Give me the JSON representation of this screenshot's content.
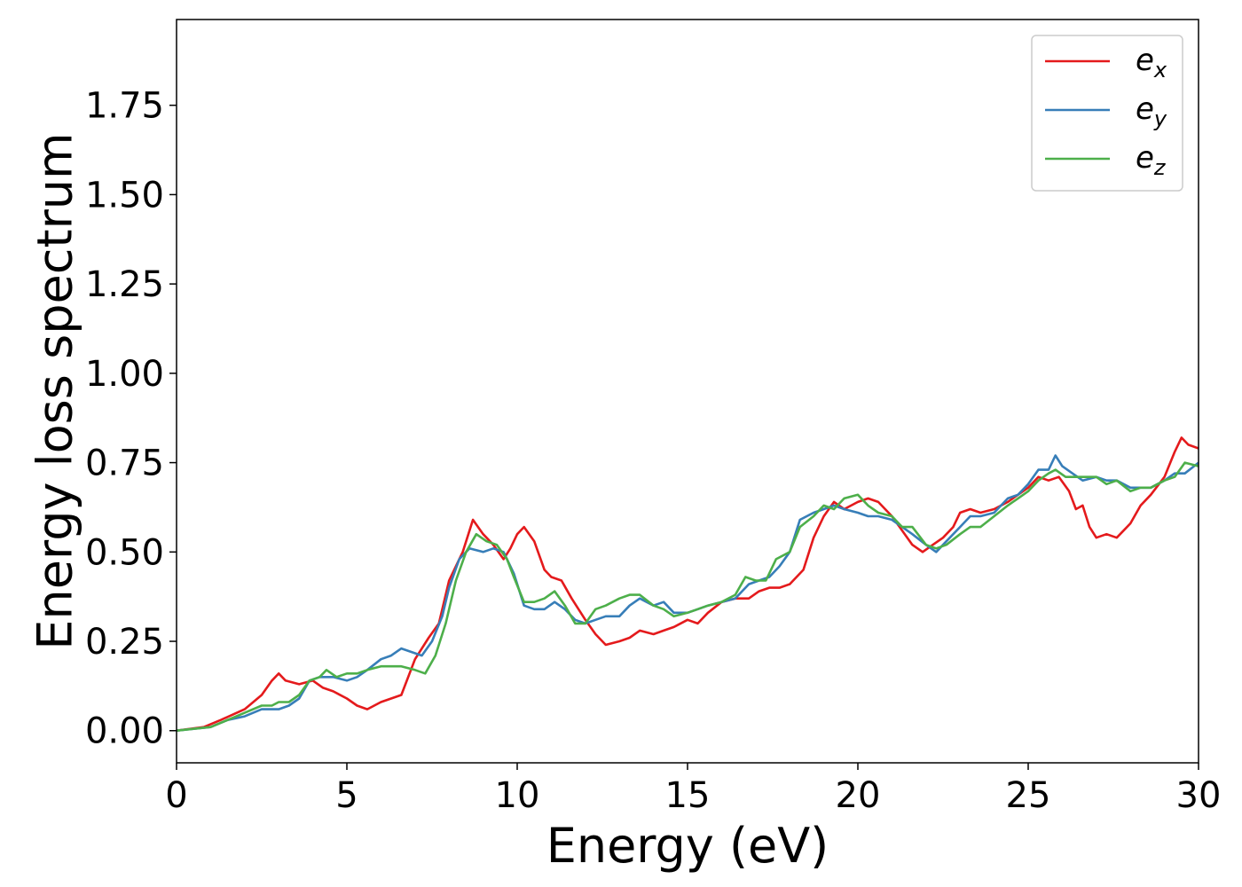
{
  "chart_data": {
    "type": "line",
    "title": "",
    "xlabel": "Energy (eV)",
    "ylabel": "Energy loss spectrum",
    "xlim": [
      0,
      30
    ],
    "ylim": [
      -0.09,
      1.99
    ],
    "xticks": [
      0,
      5,
      10,
      15,
      20,
      25,
      30
    ],
    "xtick_labels": [
      "0",
      "5",
      "10",
      "15",
      "20",
      "25",
      "30"
    ],
    "yticks": [
      0.0,
      0.25,
      0.5,
      0.75,
      1.0,
      1.25,
      1.5,
      1.75
    ],
    "ytick_labels": [
      "0.00",
      "0.25",
      "0.50",
      "0.75",
      "1.00",
      "1.25",
      "1.50",
      "1.75"
    ],
    "grid": false,
    "legend_position": "top-right",
    "series": [
      {
        "name": "e",
        "name_sub": "x",
        "color": "#e41a1c",
        "points": [
          [
            0,
            0
          ],
          [
            0.8,
            0.01
          ],
          [
            1.3,
            0.03
          ],
          [
            2,
            0.06
          ],
          [
            2.5,
            0.1
          ],
          [
            2.8,
            0.14
          ],
          [
            3,
            0.16
          ],
          [
            3.2,
            0.14
          ],
          [
            3.6,
            0.13
          ],
          [
            4,
            0.14
          ],
          [
            4.3,
            0.12
          ],
          [
            4.6,
            0.11
          ],
          [
            5,
            0.09
          ],
          [
            5.3,
            0.07
          ],
          [
            5.6,
            0.06
          ],
          [
            6,
            0.08
          ],
          [
            6.3,
            0.09
          ],
          [
            6.6,
            0.1
          ],
          [
            7,
            0.2
          ],
          [
            7.4,
            0.26
          ],
          [
            7.7,
            0.3
          ],
          [
            8,
            0.42
          ],
          [
            8.4,
            0.5
          ],
          [
            8.7,
            0.59
          ],
          [
            9,
            0.55
          ],
          [
            9.3,
            0.52
          ],
          [
            9.6,
            0.48
          ],
          [
            9.8,
            0.51
          ],
          [
            10,
            0.55
          ],
          [
            10.2,
            0.57
          ],
          [
            10.5,
            0.53
          ],
          [
            10.8,
            0.45
          ],
          [
            11,
            0.43
          ],
          [
            11.3,
            0.42
          ],
          [
            11.6,
            0.37
          ],
          [
            12,
            0.31
          ],
          [
            12.3,
            0.27
          ],
          [
            12.6,
            0.24
          ],
          [
            13,
            0.25
          ],
          [
            13.3,
            0.26
          ],
          [
            13.6,
            0.28
          ],
          [
            14,
            0.27
          ],
          [
            14.3,
            0.28
          ],
          [
            14.6,
            0.29
          ],
          [
            15,
            0.31
          ],
          [
            15.3,
            0.3
          ],
          [
            15.6,
            0.33
          ],
          [
            16,
            0.36
          ],
          [
            16.4,
            0.37
          ],
          [
            16.8,
            0.37
          ],
          [
            17.1,
            0.39
          ],
          [
            17.4,
            0.4
          ],
          [
            17.7,
            0.4
          ],
          [
            18,
            0.41
          ],
          [
            18.4,
            0.45
          ],
          [
            18.7,
            0.54
          ],
          [
            19,
            0.6
          ],
          [
            19.3,
            0.64
          ],
          [
            19.6,
            0.62
          ],
          [
            20,
            0.64
          ],
          [
            20.3,
            0.65
          ],
          [
            20.6,
            0.64
          ],
          [
            21,
            0.6
          ],
          [
            21.3,
            0.56
          ],
          [
            21.6,
            0.52
          ],
          [
            21.9,
            0.5
          ],
          [
            22.2,
            0.52
          ],
          [
            22.5,
            0.54
          ],
          [
            22.8,
            0.57
          ],
          [
            23,
            0.61
          ],
          [
            23.3,
            0.62
          ],
          [
            23.6,
            0.61
          ],
          [
            24,
            0.62
          ],
          [
            24.4,
            0.64
          ],
          [
            24.7,
            0.66
          ],
          [
            25,
            0.68
          ],
          [
            25.3,
            0.71
          ],
          [
            25.6,
            0.7
          ],
          [
            25.9,
            0.71
          ],
          [
            26.2,
            0.67
          ],
          [
            26.4,
            0.62
          ],
          [
            26.6,
            0.63
          ],
          [
            26.8,
            0.57
          ],
          [
            27,
            0.54
          ],
          [
            27.3,
            0.55
          ],
          [
            27.6,
            0.54
          ],
          [
            28,
            0.58
          ],
          [
            28.3,
            0.63
          ],
          [
            28.6,
            0.66
          ],
          [
            29,
            0.71
          ],
          [
            29.3,
            0.78
          ],
          [
            29.5,
            0.82
          ],
          [
            29.7,
            0.8
          ],
          [
            30,
            0.79
          ]
        ]
      },
      {
        "name": "e",
        "name_sub": "y",
        "color": "#377eb8",
        "points": [
          [
            0,
            0
          ],
          [
            1,
            0.01
          ],
          [
            1.5,
            0.03
          ],
          [
            2,
            0.04
          ],
          [
            2.5,
            0.06
          ],
          [
            2.8,
            0.06
          ],
          [
            3,
            0.06
          ],
          [
            3.3,
            0.07
          ],
          [
            3.6,
            0.09
          ],
          [
            3.9,
            0.14
          ],
          [
            4.2,
            0.15
          ],
          [
            4.6,
            0.15
          ],
          [
            5,
            0.14
          ],
          [
            5.3,
            0.15
          ],
          [
            5.6,
            0.17
          ],
          [
            6,
            0.2
          ],
          [
            6.3,
            0.21
          ],
          [
            6.6,
            0.23
          ],
          [
            6.9,
            0.22
          ],
          [
            7.2,
            0.21
          ],
          [
            7.5,
            0.25
          ],
          [
            7.8,
            0.32
          ],
          [
            8,
            0.4
          ],
          [
            8.3,
            0.48
          ],
          [
            8.6,
            0.51
          ],
          [
            9,
            0.5
          ],
          [
            9.3,
            0.51
          ],
          [
            9.6,
            0.5
          ],
          [
            9.9,
            0.44
          ],
          [
            10.2,
            0.35
          ],
          [
            10.5,
            0.34
          ],
          [
            10.8,
            0.34
          ],
          [
            11.1,
            0.36
          ],
          [
            11.4,
            0.34
          ],
          [
            11.7,
            0.31
          ],
          [
            12,
            0.3
          ],
          [
            12.3,
            0.31
          ],
          [
            12.6,
            0.32
          ],
          [
            13,
            0.32
          ],
          [
            13.3,
            0.35
          ],
          [
            13.6,
            0.37
          ],
          [
            14,
            0.35
          ],
          [
            14.3,
            0.36
          ],
          [
            14.6,
            0.33
          ],
          [
            15,
            0.33
          ],
          [
            15.3,
            0.34
          ],
          [
            15.6,
            0.35
          ],
          [
            16,
            0.36
          ],
          [
            16.4,
            0.37
          ],
          [
            16.8,
            0.41
          ],
          [
            17.1,
            0.42
          ],
          [
            17.4,
            0.43
          ],
          [
            17.7,
            0.46
          ],
          [
            18,
            0.5
          ],
          [
            18.3,
            0.59
          ],
          [
            18.7,
            0.61
          ],
          [
            19,
            0.62
          ],
          [
            19.3,
            0.63
          ],
          [
            19.6,
            0.62
          ],
          [
            20,
            0.61
          ],
          [
            20.3,
            0.6
          ],
          [
            20.6,
            0.6
          ],
          [
            21,
            0.59
          ],
          [
            21.3,
            0.57
          ],
          [
            21.6,
            0.55
          ],
          [
            22,
            0.52
          ],
          [
            22.3,
            0.5
          ],
          [
            22.6,
            0.53
          ],
          [
            23,
            0.57
          ],
          [
            23.3,
            0.6
          ],
          [
            23.6,
            0.6
          ],
          [
            24,
            0.61
          ],
          [
            24.4,
            0.65
          ],
          [
            24.7,
            0.66
          ],
          [
            25,
            0.69
          ],
          [
            25.3,
            0.73
          ],
          [
            25.6,
            0.73
          ],
          [
            25.8,
            0.77
          ],
          [
            26,
            0.74
          ],
          [
            26.3,
            0.72
          ],
          [
            26.6,
            0.7
          ],
          [
            27,
            0.71
          ],
          [
            27.3,
            0.7
          ],
          [
            27.6,
            0.7
          ],
          [
            28,
            0.68
          ],
          [
            28.3,
            0.68
          ],
          [
            28.6,
            0.68
          ],
          [
            29,
            0.7
          ],
          [
            29.3,
            0.72
          ],
          [
            29.6,
            0.72
          ],
          [
            30,
            0.75
          ]
        ]
      },
      {
        "name": "e",
        "name_sub": "z",
        "color": "#4daf4a",
        "points": [
          [
            0,
            0
          ],
          [
            1,
            0.01
          ],
          [
            1.5,
            0.03
          ],
          [
            2,
            0.05
          ],
          [
            2.5,
            0.07
          ],
          [
            2.8,
            0.07
          ],
          [
            3,
            0.08
          ],
          [
            3.3,
            0.08
          ],
          [
            3.6,
            0.1
          ],
          [
            3.9,
            0.14
          ],
          [
            4.2,
            0.15
          ],
          [
            4.4,
            0.17
          ],
          [
            4.7,
            0.15
          ],
          [
            5,
            0.16
          ],
          [
            5.3,
            0.16
          ],
          [
            5.6,
            0.17
          ],
          [
            6,
            0.18
          ],
          [
            6.3,
            0.18
          ],
          [
            6.6,
            0.18
          ],
          [
            7,
            0.17
          ],
          [
            7.3,
            0.16
          ],
          [
            7.6,
            0.21
          ],
          [
            7.9,
            0.3
          ],
          [
            8.2,
            0.42
          ],
          [
            8.5,
            0.5
          ],
          [
            8.8,
            0.55
          ],
          [
            9.1,
            0.53
          ],
          [
            9.4,
            0.52
          ],
          [
            9.7,
            0.48
          ],
          [
            9.9,
            0.43
          ],
          [
            10.2,
            0.36
          ],
          [
            10.5,
            0.36
          ],
          [
            10.8,
            0.37
          ],
          [
            11.1,
            0.39
          ],
          [
            11.4,
            0.35
          ],
          [
            11.7,
            0.3
          ],
          [
            12,
            0.3
          ],
          [
            12.3,
            0.34
          ],
          [
            12.6,
            0.35
          ],
          [
            13,
            0.37
          ],
          [
            13.3,
            0.38
          ],
          [
            13.6,
            0.38
          ],
          [
            14,
            0.35
          ],
          [
            14.3,
            0.34
          ],
          [
            14.6,
            0.32
          ],
          [
            15,
            0.33
          ],
          [
            15.3,
            0.34
          ],
          [
            15.6,
            0.35
          ],
          [
            16,
            0.36
          ],
          [
            16.4,
            0.38
          ],
          [
            16.7,
            0.43
          ],
          [
            17,
            0.42
          ],
          [
            17.3,
            0.42
          ],
          [
            17.6,
            0.48
          ],
          [
            18,
            0.5
          ],
          [
            18.3,
            0.57
          ],
          [
            18.7,
            0.6
          ],
          [
            19,
            0.63
          ],
          [
            19.3,
            0.62
          ],
          [
            19.6,
            0.65
          ],
          [
            20,
            0.66
          ],
          [
            20.3,
            0.63
          ],
          [
            20.6,
            0.61
          ],
          [
            21,
            0.6
          ],
          [
            21.3,
            0.57
          ],
          [
            21.6,
            0.57
          ],
          [
            22,
            0.52
          ],
          [
            22.3,
            0.51
          ],
          [
            22.6,
            0.52
          ],
          [
            23,
            0.55
          ],
          [
            23.3,
            0.57
          ],
          [
            23.6,
            0.57
          ],
          [
            24,
            0.6
          ],
          [
            24.4,
            0.63
          ],
          [
            24.7,
            0.65
          ],
          [
            25,
            0.67
          ],
          [
            25.3,
            0.7
          ],
          [
            25.6,
            0.72
          ],
          [
            25.8,
            0.73
          ],
          [
            26.1,
            0.71
          ],
          [
            26.4,
            0.71
          ],
          [
            26.7,
            0.71
          ],
          [
            27,
            0.71
          ],
          [
            27.3,
            0.69
          ],
          [
            27.6,
            0.7
          ],
          [
            28,
            0.67
          ],
          [
            28.3,
            0.68
          ],
          [
            28.6,
            0.68
          ],
          [
            29,
            0.7
          ],
          [
            29.3,
            0.71
          ],
          [
            29.6,
            0.75
          ],
          [
            30,
            0.74
          ]
        ]
      }
    ]
  }
}
